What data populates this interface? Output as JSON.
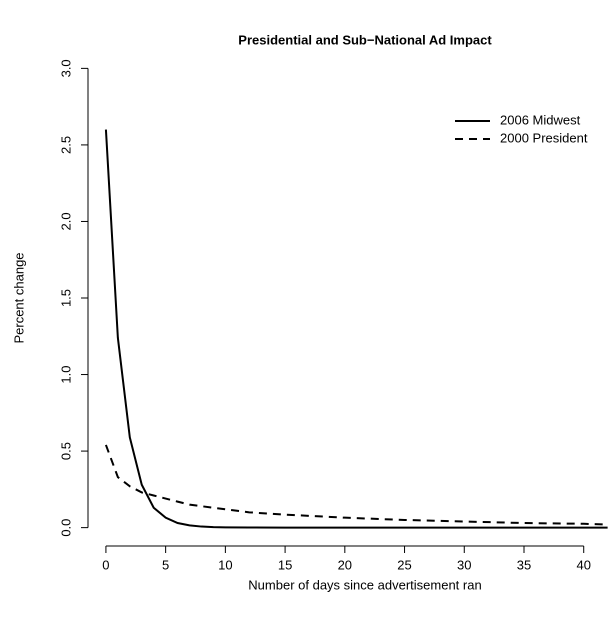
{
  "chart_data": {
    "type": "line",
    "title": "Presidential and Sub−National Ad Impact",
    "x_label": "Number of days since advertisement ran",
    "y_label": "Percent change",
    "x": [
      0,
      1,
      2,
      3,
      4,
      5,
      6,
      7,
      8,
      9,
      10,
      12,
      15,
      20,
      25,
      30,
      35,
      40,
      42
    ],
    "series": [
      {
        "name": "2006 Midwest",
        "color": "#000000",
        "dash": "solid",
        "values": [
          2.6,
          1.24,
          0.59,
          0.28,
          0.13,
          0.065,
          0.03,
          0.015,
          0.007,
          0.003,
          0.002,
          0.001,
          0,
          0,
          0,
          0,
          0,
          0,
          0
        ]
      },
      {
        "name": "2000 President",
        "color": "#000000",
        "dash": "dashed",
        "values": [
          0.54,
          0.33,
          0.27,
          0.23,
          0.21,
          0.19,
          0.17,
          0.15,
          0.14,
          0.13,
          0.12,
          0.1,
          0.085,
          0.065,
          0.05,
          0.04,
          0.03,
          0.025,
          0.02
        ]
      }
    ],
    "xlim": [
      -1.5,
      42.2
    ],
    "ylim": [
      -0.12,
      3.12
    ],
    "xticks": [
      0,
      5,
      10,
      15,
      20,
      25,
      30,
      35,
      40
    ],
    "yticks": [
      {
        "value": 0,
        "label": "0.0"
      },
      {
        "value": 0.5,
        "label": "0.5"
      },
      {
        "value": 1,
        "label": "1.0"
      },
      {
        "value": 1.5,
        "label": "1.5"
      },
      {
        "value": 2,
        "label": "2.0"
      },
      {
        "value": 2.5,
        "label": "2.5"
      },
      {
        "value": 3,
        "label": "3.0"
      }
    ],
    "legend": "top-right"
  }
}
